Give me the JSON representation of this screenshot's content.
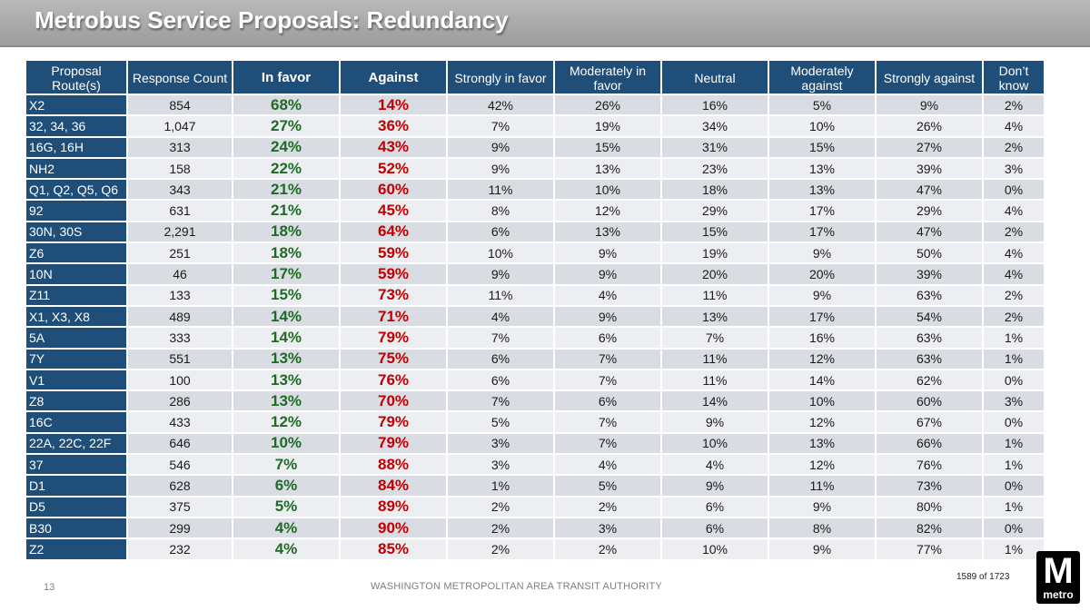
{
  "header": {
    "title": "Metrobus Service Proposals: Redundancy"
  },
  "table": {
    "columns": [
      "Proposal Route(s)",
      "Response Count",
      "In favor",
      "Against",
      "Strongly in favor",
      "Moderately in favor",
      "Neutral",
      "Moderately against",
      "Strongly against",
      "Don’t know"
    ],
    "rows": [
      [
        "X2",
        "854",
        "68%",
        "14%",
        "42%",
        "26%",
        "16%",
        "5%",
        "9%",
        "2%"
      ],
      [
        "32, 34, 36",
        "1,047",
        "27%",
        "36%",
        "7%",
        "19%",
        "34%",
        "10%",
        "26%",
        "4%"
      ],
      [
        "16G, 16H",
        "313",
        "24%",
        "43%",
        "9%",
        "15%",
        "31%",
        "15%",
        "27%",
        "2%"
      ],
      [
        "NH2",
        "158",
        "22%",
        "52%",
        "9%",
        "13%",
        "23%",
        "13%",
        "39%",
        "3%"
      ],
      [
        "Q1, Q2, Q5, Q6",
        "343",
        "21%",
        "60%",
        "11%",
        "10%",
        "18%",
        "13%",
        "47%",
        "0%"
      ],
      [
        "92",
        "631",
        "21%",
        "45%",
        "8%",
        "12%",
        "29%",
        "17%",
        "29%",
        "4%"
      ],
      [
        "30N, 30S",
        "2,291",
        "18%",
        "64%",
        "6%",
        "13%",
        "15%",
        "17%",
        "47%",
        "2%"
      ],
      [
        "Z6",
        "251",
        "18%",
        "59%",
        "10%",
        "9%",
        "19%",
        "9%",
        "50%",
        "4%"
      ],
      [
        "10N",
        "46",
        "17%",
        "59%",
        "9%",
        "9%",
        "20%",
        "20%",
        "39%",
        "4%"
      ],
      [
        "Z11",
        "133",
        "15%",
        "73%",
        "11%",
        "4%",
        "11%",
        "9%",
        "63%",
        "2%"
      ],
      [
        "X1, X3, X8",
        "489",
        "14%",
        "71%",
        "4%",
        "9%",
        "13%",
        "17%",
        "54%",
        "2%"
      ],
      [
        "5A",
        "333",
        "14%",
        "79%",
        "7%",
        "6%",
        "7%",
        "16%",
        "63%",
        "1%"
      ],
      [
        "7Y",
        "551",
        "13%",
        "75%",
        "6%",
        "7%",
        "11%",
        "12%",
        "63%",
        "1%"
      ],
      [
        "V1",
        "100",
        "13%",
        "76%",
        "6%",
        "7%",
        "11%",
        "14%",
        "62%",
        "0%"
      ],
      [
        "Z8",
        "286",
        "13%",
        "70%",
        "7%",
        "6%",
        "14%",
        "10%",
        "60%",
        "3%"
      ],
      [
        "16C",
        "433",
        "12%",
        "79%",
        "5%",
        "7%",
        "9%",
        "12%",
        "67%",
        "0%"
      ],
      [
        "22A, 22C, 22F",
        "646",
        "10%",
        "79%",
        "3%",
        "7%",
        "10%",
        "13%",
        "66%",
        "1%"
      ],
      [
        "37",
        "546",
        "7%",
        "88%",
        "3%",
        "4%",
        "4%",
        "12%",
        "76%",
        "1%"
      ],
      [
        "D1",
        "628",
        "6%",
        "84%",
        "1%",
        "5%",
        "9%",
        "11%",
        "73%",
        "0%"
      ],
      [
        "D5",
        "375",
        "5%",
        "89%",
        "2%",
        "2%",
        "6%",
        "9%",
        "80%",
        "1%"
      ],
      [
        "B30",
        "299",
        "4%",
        "90%",
        "2%",
        "3%",
        "6%",
        "8%",
        "82%",
        "0%"
      ],
      [
        "Z2",
        "232",
        "4%",
        "85%",
        "2%",
        "2%",
        "10%",
        "9%",
        "77%",
        "1%"
      ]
    ]
  },
  "footer": {
    "page_number": "13",
    "organization": "WASHINGTON METROPOLITAN AREA TRANSIT AUTHORITY",
    "page_count": "1589 of 1723"
  },
  "logo": {
    "letter": "M",
    "word": "metro"
  },
  "colors": {
    "header_bg": "#1f4e79",
    "in_favor": "#1f6b26",
    "against": "#c00000",
    "row_odd": "#d9dce2",
    "row_even": "#eceef1",
    "title_bar": "#a6a6a6"
  }
}
